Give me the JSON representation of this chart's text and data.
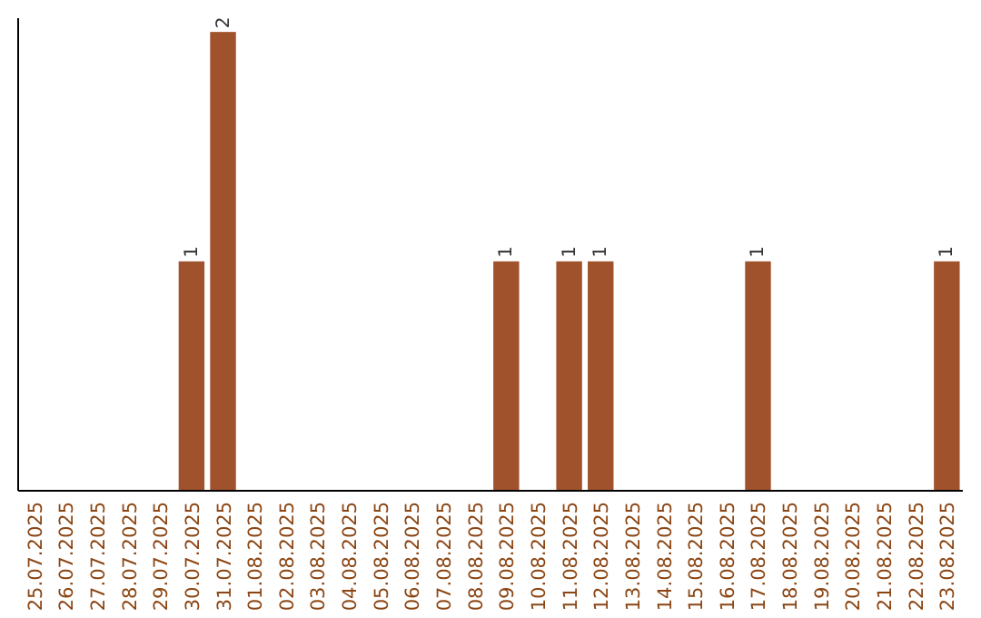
{
  "chart_data": {
    "type": "bar",
    "categories": [
      "25.07.2025",
      "26.07.2025",
      "27.07.2025",
      "28.07.2025",
      "29.07.2025",
      "30.07.2025",
      "31.07.2025",
      "01.08.2025",
      "02.08.2025",
      "03.08.2025",
      "04.08.2025",
      "05.08.2025",
      "06.08.2025",
      "07.08.2025",
      "08.08.2025",
      "09.08.2025",
      "10.08.2025",
      "11.08.2025",
      "12.08.2025",
      "13.08.2025",
      "14.08.2025",
      "15.08.2025",
      "16.08.2025",
      "17.08.2025",
      "18.08.2025",
      "19.08.2025",
      "20.08.2025",
      "21.08.2025",
      "22.08.2025",
      "23.08.2025"
    ],
    "values": [
      0,
      0,
      0,
      0,
      0,
      1,
      2,
      0,
      0,
      0,
      0,
      0,
      0,
      0,
      0,
      1,
      0,
      1,
      1,
      0,
      0,
      0,
      0,
      1,
      0,
      0,
      0,
      0,
      0,
      1
    ],
    "value_labels": [
      null,
      null,
      null,
      null,
      null,
      "1",
      "2",
      null,
      null,
      null,
      null,
      null,
      null,
      null,
      null,
      "1",
      null,
      "1",
      "1",
      null,
      null,
      null,
      null,
      "1",
      null,
      null,
      null,
      null,
      null,
      "1"
    ],
    "color": "#a0522d"
  }
}
